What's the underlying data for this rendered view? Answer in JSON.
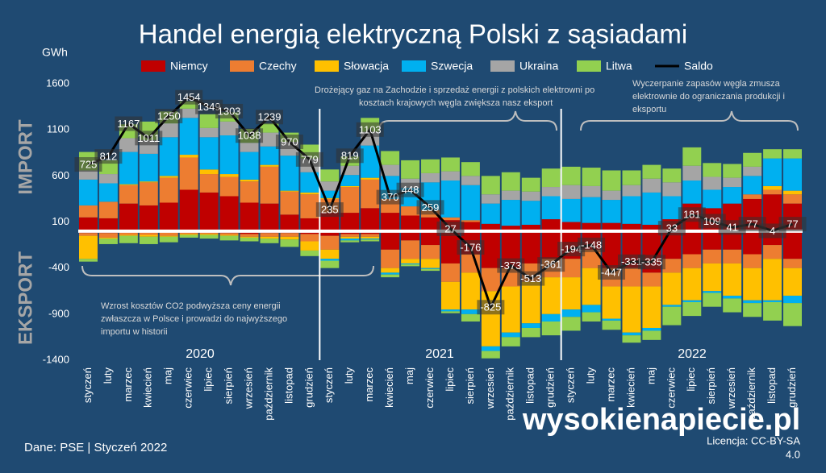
{
  "chart_data": {
    "type": "bar",
    "stacked": true,
    "title": "Handel energią elektryczną Polski z sąsiadami",
    "unit_label": "GWh",
    "side_labels": [
      "IMPORT",
      "EKSPORT"
    ],
    "year_labels": [
      "2020",
      "2021",
      "2022"
    ],
    "categories": [
      "styczeń",
      "luty",
      "marzec",
      "kwiecień",
      "maj",
      "czerwiec",
      "lipiec",
      "sierpień",
      "wrzesień",
      "październik",
      "listopad",
      "grudzień",
      "styczeń",
      "luty",
      "marzec",
      "kwiecień",
      "maj",
      "czerwiec",
      "lipiec",
      "sierpień",
      "wrzesień",
      "październik",
      "listopad",
      "grudzień",
      "styczeń",
      "luty",
      "marzec",
      "kwiecień",
      "maj",
      "czerwiec",
      "lipiec",
      "sierpień",
      "wrzesień",
      "październik",
      "listopad",
      "grudzień"
    ],
    "ylim": [
      -1400,
      1600
    ],
    "yticks": [
      1600,
      1100,
      600,
      100,
      -400,
      -900,
      -1400
    ],
    "grid": false,
    "series": [
      {
        "name": "Niemcy",
        "color": "#c00000",
        "values": [
          150,
          140,
          300,
          280,
          310,
          450,
          420,
          380,
          310,
          300,
          180,
          140,
          200,
          200,
          250,
          200,
          170,
          150,
          120,
          100,
          80,
          60,
          70,
          130,
          100,
          90,
          90,
          80,
          70,
          130,
          300,
          250,
          300,
          350,
          400,
          300
        ],
        "export": [
          -20,
          -20,
          -10,
          -10,
          -10,
          -10,
          -10,
          -20,
          -30,
          -20,
          -20,
          -30,
          -50,
          -30,
          -30,
          -200,
          -100,
          -150,
          -350,
          -250,
          -400,
          -400,
          -350,
          -300,
          -300,
          -200,
          -400,
          -400,
          -450,
          -300,
          -250,
          -200,
          -200,
          -250,
          -150,
          -300
        ]
      },
      {
        "name": "Czechy",
        "color": "#ed7d31",
        "values": [
          130,
          180,
          200,
          250,
          270,
          350,
          200,
          210,
          230,
          400,
          250,
          260,
          150,
          280,
          310,
          150,
          100,
          80,
          30,
          20,
          0,
          0,
          0,
          0,
          0,
          0,
          0,
          0,
          0,
          0,
          0,
          0,
          0,
          50,
          50,
          100
        ],
        "export": [
          -30,
          -50,
          -30,
          -30,
          -40,
          -20,
          -20,
          -20,
          -30,
          -40,
          -40,
          -80,
          -150,
          -30,
          -30,
          -200,
          -200,
          -150,
          -200,
          -200,
          -250,
          -200,
          -200,
          -200,
          -200,
          -200,
          -200,
          -200,
          -150,
          -150,
          -150,
          -150,
          -150,
          -150,
          -150,
          -100
        ]
      },
      {
        "name": "Słowacja",
        "color": "#ffc000",
        "values": [
          0,
          0,
          10,
          10,
          20,
          30,
          50,
          30,
          20,
          20,
          10,
          20,
          10,
          10,
          20,
          0,
          0,
          0,
          0,
          0,
          0,
          0,
          0,
          0,
          0,
          0,
          0,
          0,
          0,
          0,
          0,
          0,
          0,
          0,
          40,
          40
        ],
        "export": [
          -250,
          -10,
          -10,
          -20,
          -10,
          -10,
          -10,
          -10,
          -10,
          -20,
          -30,
          -100,
          -100,
          -20,
          -20,
          -50,
          -50,
          -100,
          -300,
          -400,
          -600,
          -500,
          -450,
          -400,
          -350,
          -400,
          -350,
          -500,
          -450,
          -350,
          -350,
          -300,
          -350,
          -350,
          -450,
          -300
        ]
      },
      {
        "name": "Szwecja",
        "color": "#00b0f0",
        "values": [
          280,
          200,
          350,
          300,
          420,
          400,
          350,
          420,
          300,
          200,
          380,
          220,
          80,
          120,
          350,
          250,
          200,
          300,
          400,
          380,
          220,
          280,
          260,
          250,
          250,
          280,
          250,
          300,
          350,
          250,
          250,
          200,
          180,
          200,
          300,
          350
        ],
        "export": [
          0,
          0,
          0,
          0,
          0,
          0,
          0,
          0,
          0,
          0,
          0,
          0,
          -20,
          -20,
          -10,
          -20,
          -10,
          -10,
          -20,
          -50,
          -50,
          -50,
          -50,
          -80,
          -80,
          -80,
          -20,
          -30,
          -30,
          -20,
          -20,
          -20,
          -30,
          -30,
          -20,
          -80
        ]
      },
      {
        "name": "Ukraina",
        "color": "#a5a5a5",
        "values": [
          100,
          100,
          150,
          150,
          150,
          100,
          100,
          150,
          100,
          150,
          150,
          150,
          100,
          100,
          150,
          120,
          100,
          100,
          100,
          100,
          100,
          100,
          100,
          100,
          150,
          120,
          100,
          120,
          150,
          150,
          160,
          140,
          100,
          100,
          0,
          0
        ],
        "export": [
          0,
          0,
          0,
          0,
          0,
          0,
          0,
          0,
          0,
          0,
          0,
          0,
          0,
          0,
          0,
          0,
          0,
          0,
          0,
          0,
          0,
          0,
          0,
          0,
          0,
          0,
          0,
          0,
          0,
          0,
          0,
          0,
          0,
          0,
          0,
          0
        ]
      },
      {
        "name": "Litwa",
        "color": "#92d050",
        "values": [
          200,
          150,
          150,
          200,
          130,
          80,
          150,
          100,
          150,
          100,
          100,
          150,
          130,
          100,
          150,
          150,
          200,
          150,
          150,
          150,
          200,
          200,
          150,
          200,
          200,
          200,
          220,
          160,
          150,
          150,
          200,
          150,
          150,
          150,
          100,
          100
        ],
        "export": [
          -30,
          -60,
          -80,
          -80,
          -60,
          -30,
          -40,
          -50,
          -40,
          -50,
          -80,
          -60,
          -80,
          -20,
          -20,
          -30,
          -20,
          -20,
          -20,
          -80,
          -80,
          -100,
          -100,
          -150,
          -150,
          -100,
          -100,
          -80,
          -100,
          -200,
          -150,
          -150,
          -150,
          -150,
          -200,
          -250
        ]
      }
    ],
    "line": {
      "name": "Saldo",
      "color": "#000000",
      "values": [
        725,
        812,
        1167,
        1011,
        1250,
        1454,
        1349,
        1303,
        1038,
        1239,
        970,
        779,
        235,
        819,
        1103,
        370,
        448,
        259,
        27,
        -176,
        -825,
        -373,
        -513,
        -361,
        -194,
        -148,
        -447,
        -331,
        -335,
        33,
        181,
        109,
        41,
        77,
        4,
        77
      ]
    },
    "annotations": [
      [
        "Drożejący gaz na Zachodzie i sprzedaż energii z polskich elektrowni po",
        "kosztach krajowych węgla zwiększa nasz eksport"
      ],
      [
        "Wyczerpanie zapasów węgla zmusza",
        "elektrownie do ograniczania produkcji i",
        "eksportu"
      ],
      [
        "Wzrost kosztów CO2 podwyższa ceny energii",
        "zwłaszcza w Polsce i prowadzi do najwyższego",
        "importu w historii"
      ]
    ],
    "source": "Dane: PSE  |  Styczeń 2022",
    "brand": "wysokienapiecie.pl",
    "license": [
      "Licencja: CC-BY-SA",
      "4.0"
    ]
  }
}
